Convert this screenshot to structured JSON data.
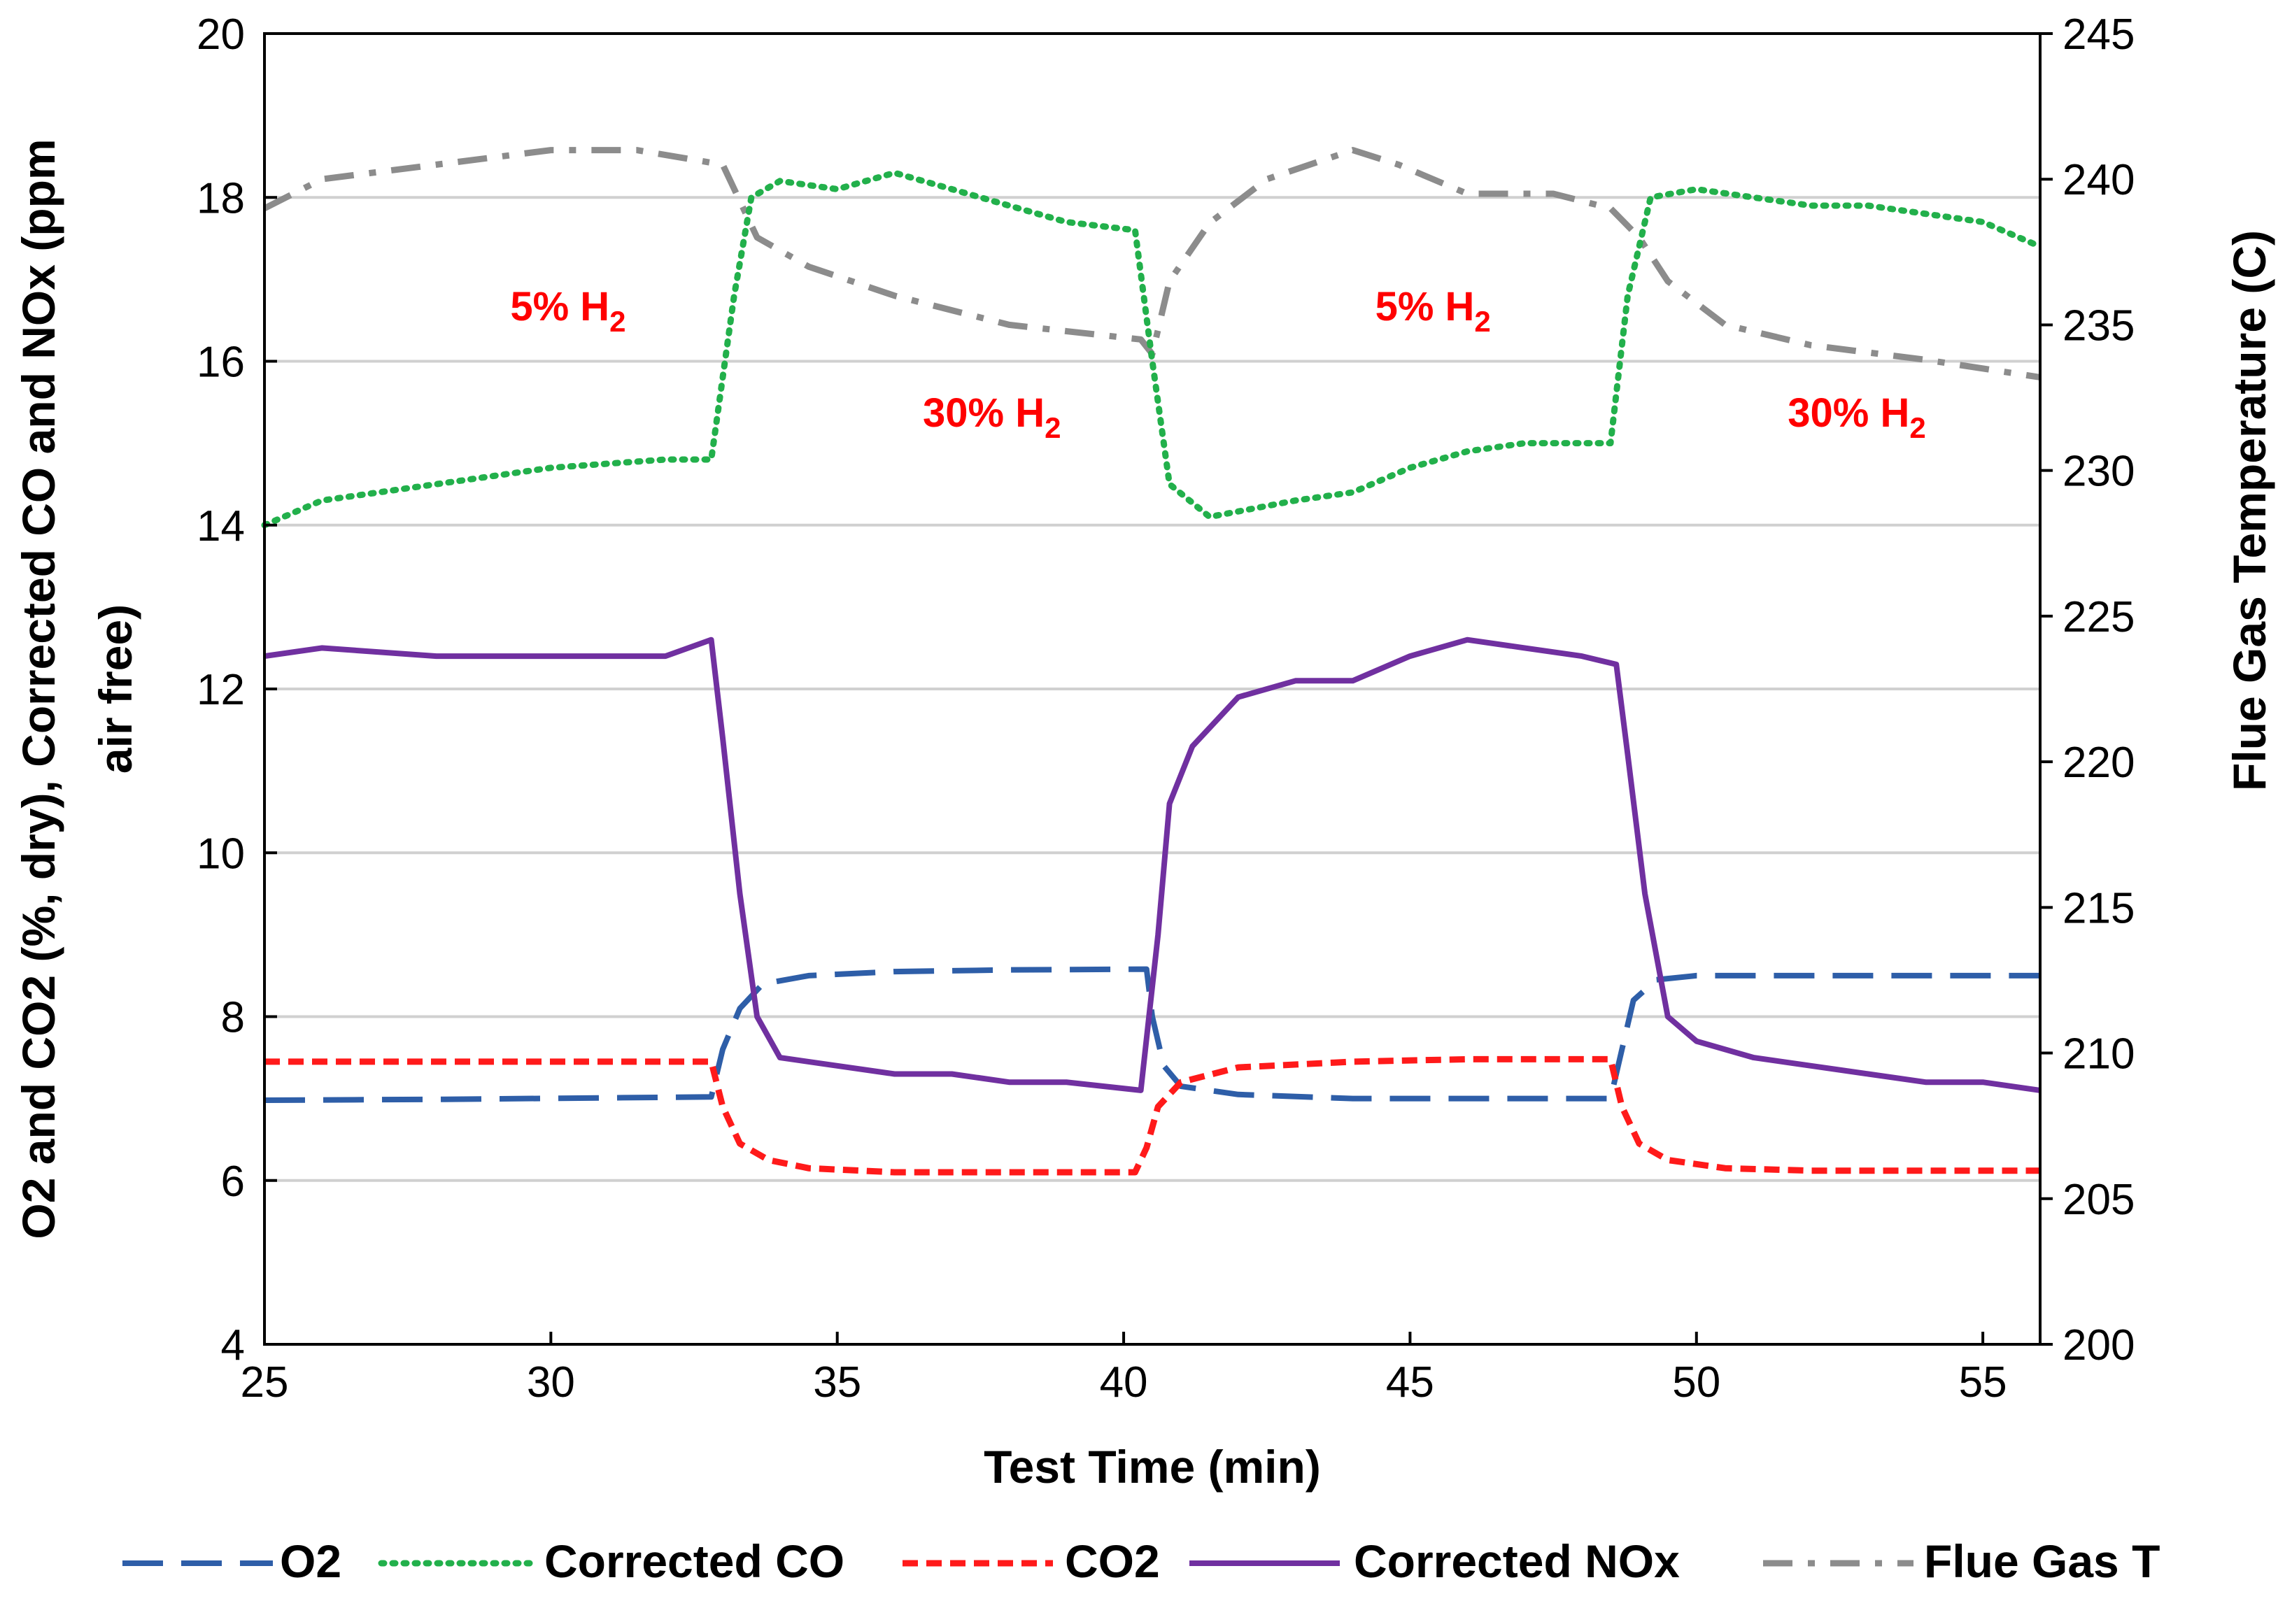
{
  "chart_data": {
    "type": "line",
    "title": "",
    "xlabel": "Test Time (min)",
    "ylabel_left_line1": "O2 and CO2 (%, dry), Corrected CO and NOx (ppm",
    "ylabel_left_line2": "air free)",
    "ylabel_right": "Flue Gas Temperature (C)",
    "xlim": [
      25,
      56
    ],
    "ylim_left": [
      4,
      20
    ],
    "ylim_right": [
      200,
      245
    ],
    "x_ticks": [
      25,
      30,
      35,
      40,
      45,
      50,
      55
    ],
    "y_left_ticks": [
      4,
      6,
      8,
      10,
      12,
      14,
      16,
      18,
      20
    ],
    "y_right_ticks": [
      200,
      205,
      210,
      215,
      220,
      225,
      230,
      235,
      240,
      245
    ],
    "grid": "horizontal",
    "legend_position": "bottom",
    "annotations": [
      {
        "text": "5% H",
        "sub": "2",
        "x": 30.3,
        "y": 16.5
      },
      {
        "text": "30% H",
        "sub": "2",
        "x": 37.7,
        "y": 15.2
      },
      {
        "text": "5% H",
        "sub": "2",
        "x": 45.4,
        "y": 16.5
      },
      {
        "text": "30% H",
        "sub": "2",
        "x": 52.8,
        "y": 15.2
      }
    ],
    "series": [
      {
        "name": "O2",
        "axis": "left",
        "color": "#2e5ea8",
        "style": "longdash",
        "x": [
          25,
          28,
          32.8,
          33.0,
          33.3,
          33.7,
          34.5,
          36,
          38,
          40.4,
          40.5,
          40.7,
          41.0,
          42,
          44,
          46,
          48.5,
          48.7,
          48.9,
          49.3,
          50,
          52,
          56
        ],
        "y": [
          6.98,
          6.99,
          7.02,
          7.6,
          8.1,
          8.4,
          8.5,
          8.55,
          8.57,
          8.58,
          8.0,
          7.4,
          7.15,
          7.05,
          7.0,
          7.0,
          7.0,
          7.6,
          8.2,
          8.45,
          8.5,
          8.5,
          8.5
        ]
      },
      {
        "name": "CO2",
        "axis": "left",
        "color": "#ff1a1a",
        "style": "shortdash",
        "x": [
          25,
          28,
          32.8,
          33.0,
          33.3,
          33.8,
          34.5,
          36,
          38,
          40.2,
          40.4,
          40.6,
          41.0,
          42,
          44,
          46,
          48.5,
          48.7,
          49.0,
          49.5,
          50.5,
          52,
          56
        ],
        "y": [
          7.45,
          7.45,
          7.45,
          6.9,
          6.45,
          6.25,
          6.15,
          6.1,
          6.1,
          6.1,
          6.4,
          6.9,
          7.2,
          7.38,
          7.45,
          7.48,
          7.48,
          6.9,
          6.45,
          6.25,
          6.15,
          6.12,
          6.12
        ]
      },
      {
        "name": "Corrected CO",
        "axis": "left",
        "color": "#22b04b",
        "style": "dotted",
        "x": [
          25,
          26,
          28,
          30,
          32,
          32.8,
          33.2,
          33.5,
          34,
          35,
          36,
          37,
          38,
          39,
          40.2,
          40.5,
          40.8,
          41.5,
          43,
          44,
          45,
          46,
          47,
          48.5,
          48.8,
          49.2,
          50,
          51,
          52,
          53,
          54,
          55,
          56
        ],
        "y": [
          14.0,
          14.3,
          14.5,
          14.7,
          14.8,
          14.8,
          16.8,
          18.0,
          18.2,
          18.1,
          18.3,
          18.1,
          17.9,
          17.7,
          17.6,
          16.0,
          14.5,
          14.1,
          14.3,
          14.4,
          14.7,
          14.9,
          15.0,
          15.0,
          16.8,
          18.0,
          18.1,
          18.0,
          17.9,
          17.9,
          17.8,
          17.7,
          17.4
        ]
      },
      {
        "name": "Corrected NOx",
        "axis": "left",
        "color": "#7030a0",
        "style": "solid",
        "x": [
          25,
          26,
          28,
          30,
          32,
          32.8,
          33.0,
          33.3,
          33.6,
          34,
          35,
          36,
          37,
          38,
          39,
          40.3,
          40.6,
          40.8,
          41.2,
          42,
          43,
          44,
          45,
          46,
          47,
          48,
          48.6,
          48.8,
          49.1,
          49.5,
          50,
          51,
          52,
          53,
          54,
          55,
          56
        ],
        "y": [
          12.4,
          12.5,
          12.4,
          12.4,
          12.4,
          12.6,
          11.4,
          9.5,
          8.0,
          7.5,
          7.4,
          7.3,
          7.3,
          7.2,
          7.2,
          7.1,
          9.0,
          10.6,
          11.3,
          11.9,
          12.1,
          12.1,
          12.4,
          12.6,
          12.5,
          12.4,
          12.3,
          11.2,
          9.5,
          8.0,
          7.7,
          7.5,
          7.4,
          7.3,
          7.2,
          7.2,
          7.1
        ]
      },
      {
        "name": "Flue Gas T",
        "axis": "right",
        "color": "#8c8c8c",
        "style": "dashdot",
        "x": [
          25,
          26,
          28,
          30,
          31.5,
          33,
          33.6,
          34.5,
          36,
          38,
          40.3,
          40.5,
          40.8,
          41.5,
          42.5,
          44,
          44.8,
          46,
          47.5,
          48.5,
          49.0,
          49.5,
          50.5,
          52,
          54,
          56
        ],
        "y": [
          239.0,
          240.0,
          240.5,
          241.0,
          241.0,
          240.5,
          238.0,
          237.0,
          236.0,
          235.0,
          234.5,
          234.0,
          236.5,
          238.5,
          240.0,
          241.0,
          240.5,
          239.5,
          239.5,
          239.0,
          238.0,
          236.5,
          235.0,
          234.3,
          233.8,
          233.2
        ]
      }
    ]
  }
}
